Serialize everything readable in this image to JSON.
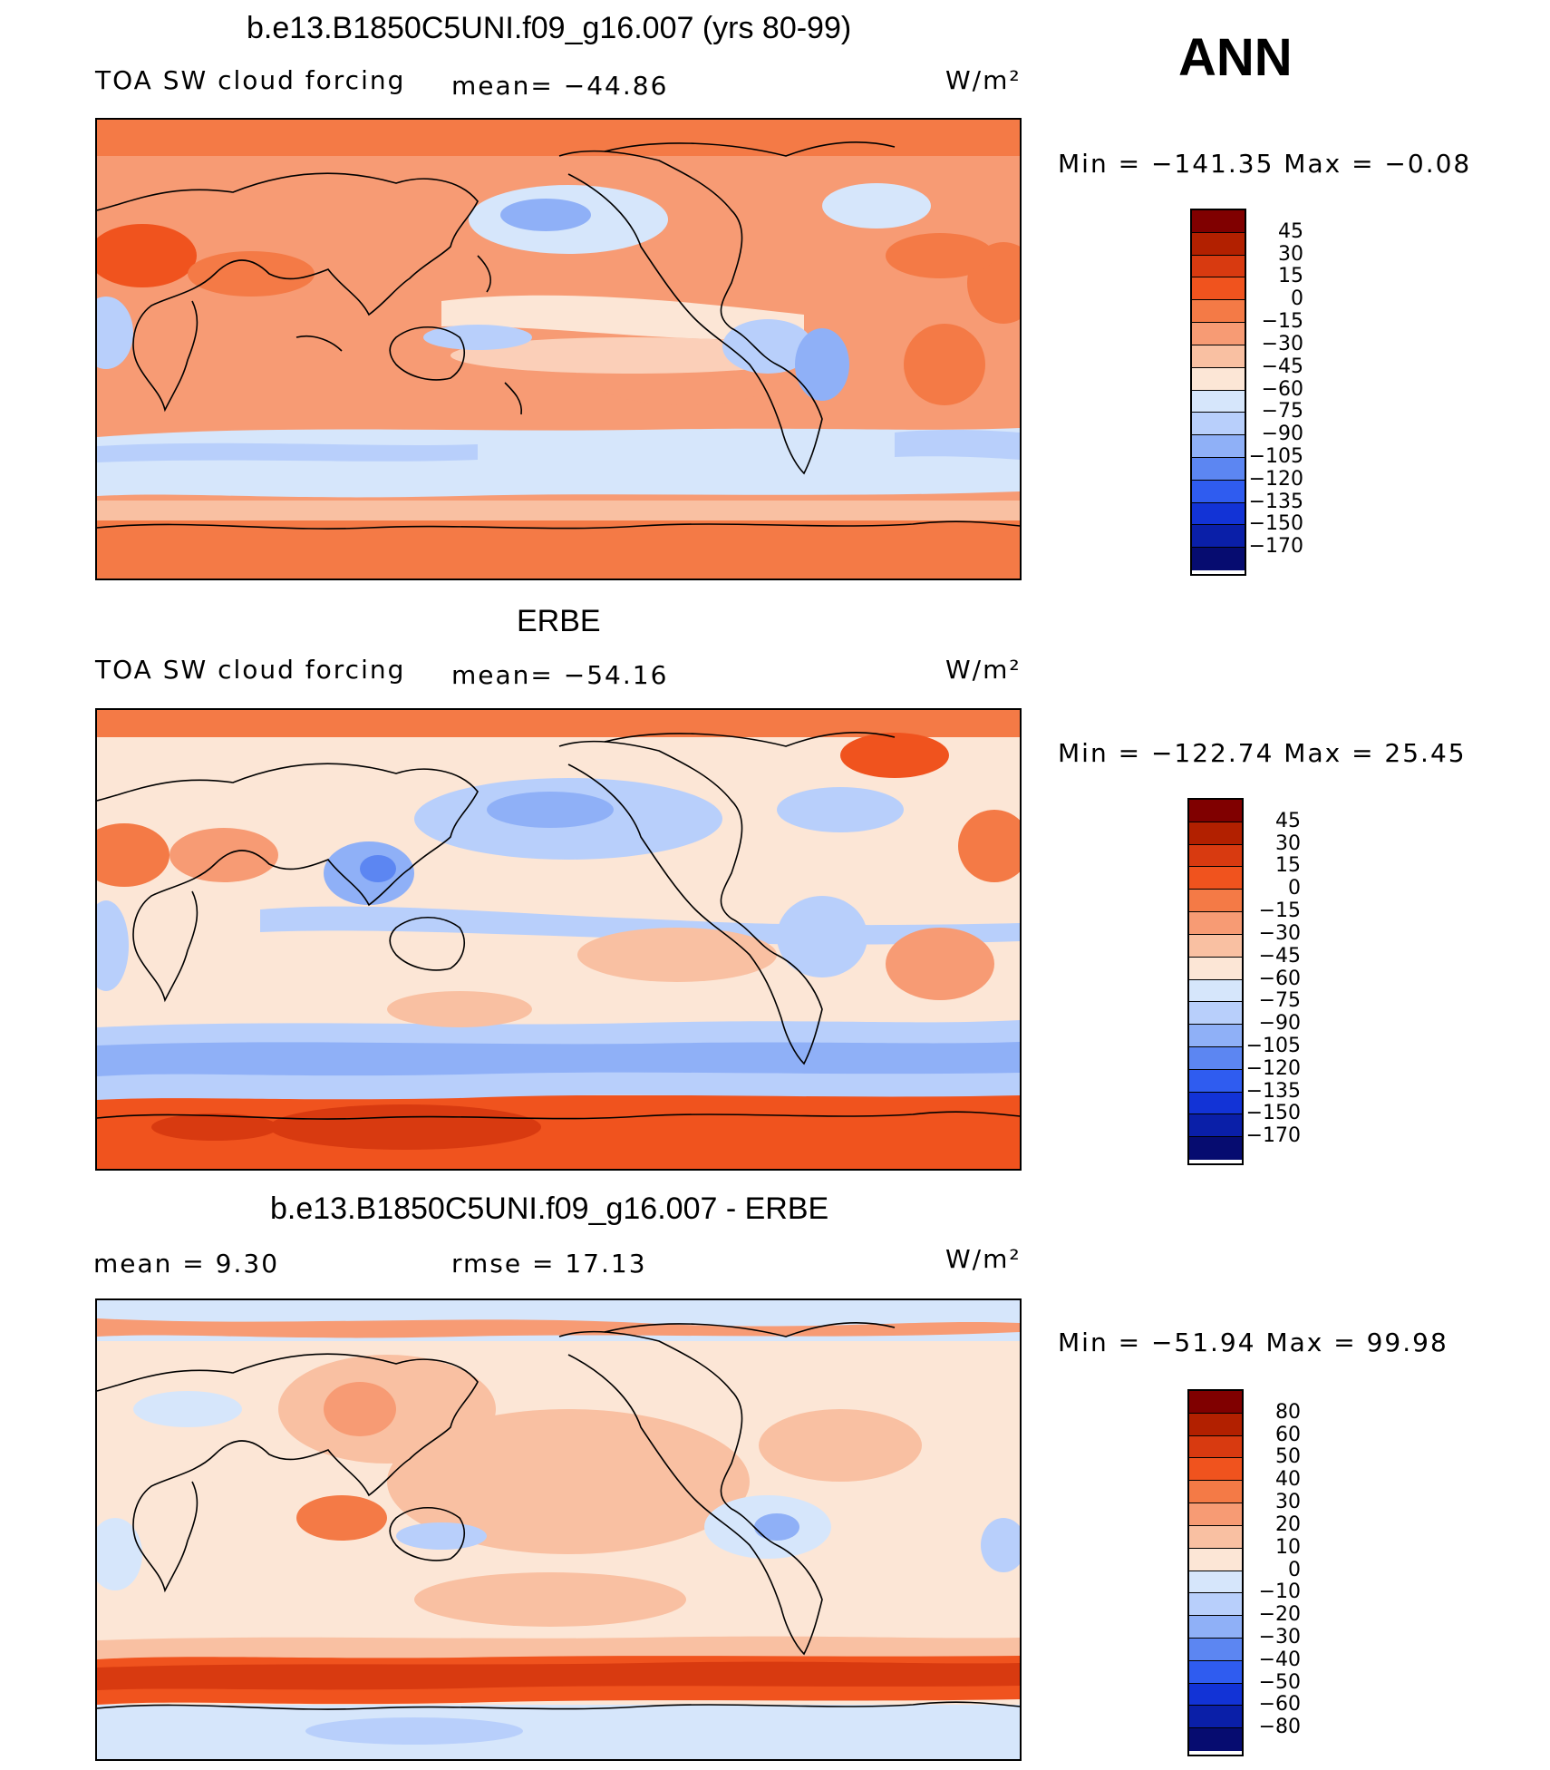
{
  "season": "ANN",
  "panels": [
    {
      "title": "b.e13.B1850C5UNI.f09_g16.007 (yrs 80-99)",
      "left_label": "TOA SW cloud forcing",
      "center_label": "mean= −44.86",
      "units": "W/m²",
      "minmax": "Min  =  −141.35  Max  =    −0.08",
      "colorbar_levels": [
        "45",
        "30",
        "15",
        "0",
        "−15",
        "−30",
        "−45",
        "−60",
        "−75",
        "−90",
        "−105",
        "−120",
        "−135",
        "−150",
        "−170"
      ]
    },
    {
      "title": "ERBE",
      "left_label": "TOA SW cloud forcing",
      "center_label": "mean= −54.16",
      "units": "W/m²",
      "minmax": "Min  =  −122.74  Max  =    25.45",
      "colorbar_levels": [
        "45",
        "30",
        "15",
        "0",
        "−15",
        "−30",
        "−45",
        "−60",
        "−75",
        "−90",
        "−105",
        "−120",
        "−135",
        "−150",
        "−170"
      ]
    },
    {
      "title": "b.e13.B1850C5UNI.f09_g16.007 - ERBE",
      "left_label": "mean  =      9.30",
      "center_label": "rmse  =    17.13",
      "units": "W/m²",
      "minmax": "Min  =  −51.94  Max  =    99.98",
      "colorbar_levels": [
        "80",
        "60",
        "50",
        "40",
        "30",
        "20",
        "10",
        "0",
        "−10",
        "−20",
        "−30",
        "−40",
        "−50",
        "−60",
        "−80"
      ]
    }
  ],
  "colors": {
    "colorbar": [
      "#800000",
      "#b22000",
      "#d83a10",
      "#f0531e",
      "#f47a46",
      "#f79b74",
      "#f9c0a2",
      "#fce6d6",
      "#d6e6fb",
      "#b8cffb",
      "#8fb0f7",
      "#5c86f2",
      "#2f5cf0",
      "#1233d6",
      "#0a1fa8",
      "#060c70"
    ]
  },
  "chart_data": [
    {
      "type": "heatmap",
      "title": "b.e13.B1850C5UNI.f09_g16.007 (yrs 80-99)",
      "variable": "TOA SW cloud forcing",
      "units": "W/m²",
      "mean": -44.86,
      "min": -141.35,
      "max": -0.08,
      "contour_levels": [
        45,
        30,
        15,
        0,
        -15,
        -30,
        -45,
        -60,
        -75,
        -90,
        -105,
        -120,
        -135,
        -150,
        -170
      ]
    },
    {
      "type": "heatmap",
      "title": "ERBE",
      "variable": "TOA SW cloud forcing",
      "units": "W/m²",
      "mean": -54.16,
      "min": -122.74,
      "max": 25.45,
      "contour_levels": [
        45,
        30,
        15,
        0,
        -15,
        -30,
        -45,
        -60,
        -75,
        -90,
        -105,
        -120,
        -135,
        -150,
        -170
      ]
    },
    {
      "type": "heatmap",
      "title": "b.e13.B1850C5UNI.f09_g16.007 - ERBE",
      "units": "W/m²",
      "mean": 9.3,
      "rmse": 17.13,
      "min": -51.94,
      "max": 99.98,
      "contour_levels": [
        80,
        60,
        50,
        40,
        30,
        20,
        10,
        0,
        -10,
        -20,
        -30,
        -40,
        -50,
        -60,
        -80
      ]
    }
  ]
}
